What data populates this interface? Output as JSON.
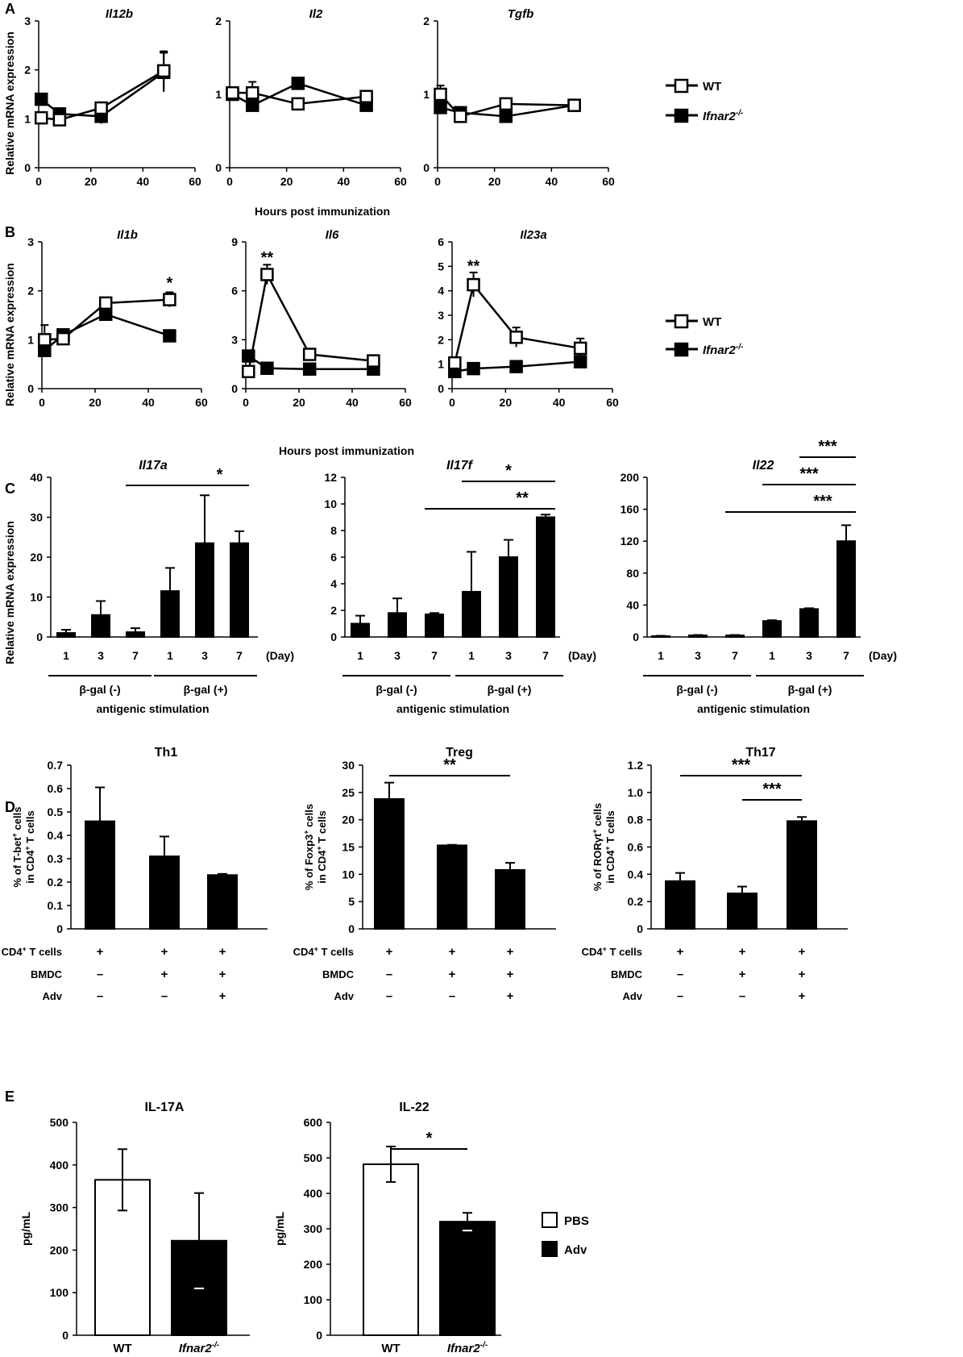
{
  "panel_labels": [
    "A",
    "B",
    "C",
    "D",
    "E"
  ],
  "shared": {
    "ylabel_relative": "Relative mRNA expression",
    "xlabel_hours": "Hours post immunization",
    "legend_wt": "WT",
    "legend_ko": "Ifnar2",
    "legend_ko_sup": "-/-",
    "legend_pbs": "PBS",
    "legend_adv": "Adv",
    "day_unit": "(Day)",
    "group_neg": "β-gal  (-)",
    "group_pos": "β-gal  (+)",
    "stim_label": "antigenic stimulation",
    "cd4_label": "CD4",
    "cd4_sup": "+",
    "cd4_suffix": " T cells",
    "bmdc_label": "BMDC",
    "adv_label": "Adv",
    "ylabel_pgml": "pg/mL"
  },
  "chart_data": [
    {
      "id": "A1",
      "type": "line",
      "title": "Il12b",
      "x": [
        1,
        8,
        24,
        48
      ],
      "ylim": [
        0,
        3
      ],
      "yticks": [
        0,
        1,
        2,
        3
      ],
      "xlim": [
        0,
        60
      ],
      "xticks": [
        0,
        20,
        40,
        60
      ],
      "series": [
        {
          "name": "WT",
          "values": [
            1.02,
            0.98,
            1.22,
            1.98
          ],
          "err": [
            0.1,
            0.08,
            0.1,
            0.4
          ]
        },
        {
          "name": "Ifnar2-/-",
          "values": [
            1.4,
            1.1,
            1.05,
            1.95
          ],
          "err": [
            0.1,
            0.08,
            0.15,
            0.4
          ]
        }
      ]
    },
    {
      "id": "A2",
      "type": "line",
      "title": "Il2",
      "x": [
        1,
        8,
        24,
        48
      ],
      "ylim": [
        0,
        2
      ],
      "yticks": [
        0,
        1,
        2
      ],
      "xlim": [
        0,
        60
      ],
      "xticks": [
        0,
        20,
        40,
        60
      ],
      "series": [
        {
          "name": "WT",
          "values": [
            1.02,
            1.02,
            0.87,
            0.97
          ],
          "err": [
            0.05,
            0.15,
            0.05,
            0.05
          ]
        },
        {
          "name": "Ifnar2-/-",
          "values": [
            1.0,
            0.85,
            1.15,
            0.85
          ],
          "err": [
            0.05,
            0.05,
            0.05,
            0.05
          ]
        }
      ]
    },
    {
      "id": "A3",
      "type": "line",
      "title": "Tgfb",
      "x": [
        1,
        8,
        24,
        48
      ],
      "ylim": [
        0,
        2
      ],
      "yticks": [
        0,
        1,
        2
      ],
      "xlim": [
        0,
        60
      ],
      "xticks": [
        0,
        20,
        40,
        60
      ],
      "series": [
        {
          "name": "WT",
          "values": [
            1.0,
            0.7,
            0.87,
            0.85
          ],
          "err": [
            0.12,
            0.05,
            0.03,
            0.03
          ]
        },
        {
          "name": "Ifnar2-/-",
          "values": [
            0.82,
            0.75,
            0.7,
            0.85
          ],
          "err": [
            0.05,
            0.03,
            0.03,
            0.03
          ]
        }
      ]
    },
    {
      "id": "B1",
      "type": "line",
      "title": "Il1b",
      "x": [
        1,
        8,
        24,
        48
      ],
      "ylim": [
        0,
        3
      ],
      "yticks": [
        0,
        1,
        2,
        3
      ],
      "xlim": [
        0,
        60
      ],
      "xticks": [
        0,
        20,
        40,
        60
      ],
      "annotations": [
        {
          "text": "*",
          "x": 48,
          "y": 2.15
        }
      ],
      "series": [
        {
          "name": "WT",
          "values": [
            1.0,
            1.02,
            1.75,
            1.82
          ],
          "err": [
            0.3,
            0.05,
            0.05,
            0.15
          ]
        },
        {
          "name": "Ifnar2-/-",
          "values": [
            0.78,
            1.1,
            1.52,
            1.08
          ],
          "err": [
            0.05,
            0.05,
            0.12,
            0.05
          ]
        }
      ]
    },
    {
      "id": "B2",
      "type": "line",
      "title": "Il6",
      "x": [
        1,
        8,
        24,
        48
      ],
      "ylim": [
        0,
        9
      ],
      "yticks": [
        0,
        3,
        6,
        9
      ],
      "xlim": [
        0,
        60
      ],
      "xticks": [
        0,
        20,
        40,
        60
      ],
      "annotations": [
        {
          "text": "**",
          "x": 8,
          "y": 8.0
        }
      ],
      "series": [
        {
          "name": "WT",
          "values": [
            1.05,
            7.0,
            2.1,
            1.7
          ],
          "err": [
            0.2,
            0.6,
            0.1,
            0.1
          ]
        },
        {
          "name": "Ifnar2-/-",
          "values": [
            2.0,
            1.25,
            1.2,
            1.2
          ],
          "err": [
            0.1,
            0.1,
            0.1,
            0.1
          ]
        }
      ]
    },
    {
      "id": "B3",
      "type": "line",
      "title": "Il23a",
      "x": [
        1,
        8,
        24,
        48
      ],
      "ylim": [
        0,
        6
      ],
      "yticks": [
        0,
        1,
        2,
        3,
        4,
        5,
        6
      ],
      "xlim": [
        0,
        60
      ],
      "xticks": [
        0,
        20,
        40,
        60
      ],
      "annotations": [
        {
          "text": "**",
          "x": 8,
          "y": 5.0
        }
      ],
      "series": [
        {
          "name": "WT",
          "values": [
            1.05,
            4.25,
            2.1,
            1.65
          ],
          "err": [
            0.1,
            0.5,
            0.4,
            0.4
          ]
        },
        {
          "name": "Ifnar2-/-",
          "values": [
            0.7,
            0.82,
            0.9,
            1.1
          ],
          "err": [
            0.05,
            0.05,
            0.05,
            0.05
          ]
        }
      ]
    },
    {
      "id": "C1",
      "type": "bar",
      "title": "Il17a",
      "categories": [
        "1",
        "3",
        "7",
        "1",
        "3",
        "7"
      ],
      "values": [
        1.0,
        5.5,
        1.2,
        11.5,
        23.5,
        23.5
      ],
      "err": [
        0.8,
        3.5,
        1.0,
        5.8,
        12.0,
        3.0
      ],
      "ylim": [
        0,
        40
      ],
      "yticks": [
        0,
        10,
        20,
        30,
        40
      ],
      "sig": [
        {
          "from": 2,
          "to": 5,
          "level": 0,
          "label": "*"
        }
      ]
    },
    {
      "id": "C2",
      "type": "bar",
      "title": "Il17f",
      "categories": [
        "1",
        "3",
        "7",
        "1",
        "3",
        "7"
      ],
      "values": [
        1.0,
        1.8,
        1.7,
        3.4,
        6.0,
        9.0
      ],
      "err": [
        0.6,
        1.1,
        0.1,
        3.0,
        1.3,
        0.2
      ],
      "ylim": [
        0,
        12
      ],
      "yticks": [
        0,
        2,
        4,
        6,
        8,
        10,
        12
      ],
      "sig": [
        {
          "from": 2,
          "to": 5,
          "level": 1,
          "label": "**"
        },
        {
          "from": 3,
          "to": 5,
          "level": 0,
          "label": "*"
        }
      ]
    },
    {
      "id": "C3",
      "type": "bar",
      "title": "Il22",
      "categories": [
        "1",
        "3",
        "7",
        "1",
        "3",
        "7"
      ],
      "values": [
        1.0,
        2.0,
        2.0,
        20.0,
        35.0,
        120.0
      ],
      "err": [
        0.5,
        0.5,
        0.5,
        1.0,
        1.0,
        20.0
      ],
      "ylim": [
        0,
        200
      ],
      "yticks": [
        0,
        40,
        80,
        120,
        160,
        200
      ],
      "sig": [
        {
          "from": 2,
          "to": 5,
          "level": 2,
          "label": "***"
        },
        {
          "from": 3,
          "to": 5,
          "level": 1,
          "label": "***"
        },
        {
          "from": 4,
          "to": 5,
          "level": 0,
          "label": "***"
        }
      ]
    },
    {
      "id": "D1",
      "type": "bar",
      "title": "Th1",
      "ylabel_prefix": "% of T-bet",
      "ylabel_sup": "+",
      "ylabel_suffix": " cells",
      "ylabel2": "in CD4+ T cells",
      "values": [
        0.46,
        0.31,
        0.23
      ],
      "err": [
        0.145,
        0.085,
        0.005
      ],
      "ylim": [
        0,
        0.7
      ],
      "yticks": [
        0,
        0.1,
        0.2,
        0.3,
        0.4,
        0.5,
        0.6,
        0.7
      ],
      "sig": [],
      "rows": [
        [
          "+",
          "+",
          "+"
        ],
        [
          "–",
          "+",
          "+"
        ],
        [
          "–",
          "–",
          "+"
        ]
      ]
    },
    {
      "id": "D2",
      "type": "bar",
      "title": "Treg",
      "ylabel_prefix": "% of Foxp3",
      "ylabel_sup": "+",
      "ylabel_suffix": " cells",
      "ylabel2": "in CD4+ T cells",
      "values": [
        23.8,
        15.3,
        10.8
      ],
      "err": [
        3.0,
        0.1,
        1.3
      ],
      "ylim": [
        0,
        30
      ],
      "yticks": [
        0,
        5,
        10,
        15,
        20,
        25,
        30
      ],
      "sig": [
        {
          "from": 0,
          "to": 2,
          "level": 0,
          "label": "**"
        }
      ],
      "rows": [
        [
          "+",
          "+",
          "+"
        ],
        [
          "–",
          "+",
          "+"
        ],
        [
          "–",
          "–",
          "+"
        ]
      ]
    },
    {
      "id": "D3",
      "type": "bar",
      "title": "Th17",
      "ylabel_prefix": "% of RORγt",
      "ylabel_sup": "+",
      "ylabel_suffix": " cells",
      "ylabel2": "in CD4+ T cells",
      "values": [
        0.35,
        0.26,
        0.79
      ],
      "err": [
        0.06,
        0.05,
        0.03
      ],
      "ylim": [
        0,
        1.2
      ],
      "yticks": [
        0,
        0.2,
        0.4,
        0.6,
        0.8,
        1.0,
        1.2
      ],
      "sig": [
        {
          "from": 0,
          "to": 2,
          "level": 1,
          "label": "***"
        },
        {
          "from": 1,
          "to": 2,
          "level": 0,
          "label": "***"
        }
      ],
      "rows": [
        [
          "+",
          "+",
          "+"
        ],
        [
          "–",
          "+",
          "+"
        ],
        [
          "–",
          "–",
          "+"
        ]
      ]
    },
    {
      "id": "E1",
      "type": "bar",
      "title": "IL-17A",
      "categories": [
        "WT",
        "Ifnar2-/-"
      ],
      "values": [
        365,
        222
      ],
      "err": [
        72,
        112
      ],
      "ylim": [
        0,
        500
      ],
      "yticks": [
        0,
        100,
        200,
        300,
        400,
        500
      ],
      "sig": [],
      "fills": [
        "PBS",
        "Adv"
      ]
    },
    {
      "id": "E2",
      "type": "bar",
      "title": "IL-22",
      "categories": [
        "WT",
        "Ifnar2-/-"
      ],
      "values": [
        482,
        320
      ],
      "err": [
        50,
        25
      ],
      "ylim": [
        0,
        600
      ],
      "yticks": [
        0,
        100,
        200,
        300,
        400,
        500,
        600
      ],
      "sig": [
        {
          "from": 0,
          "to": 1,
          "level": 0,
          "label": "*"
        }
      ],
      "fills": [
        "PBS",
        "Adv"
      ]
    }
  ]
}
